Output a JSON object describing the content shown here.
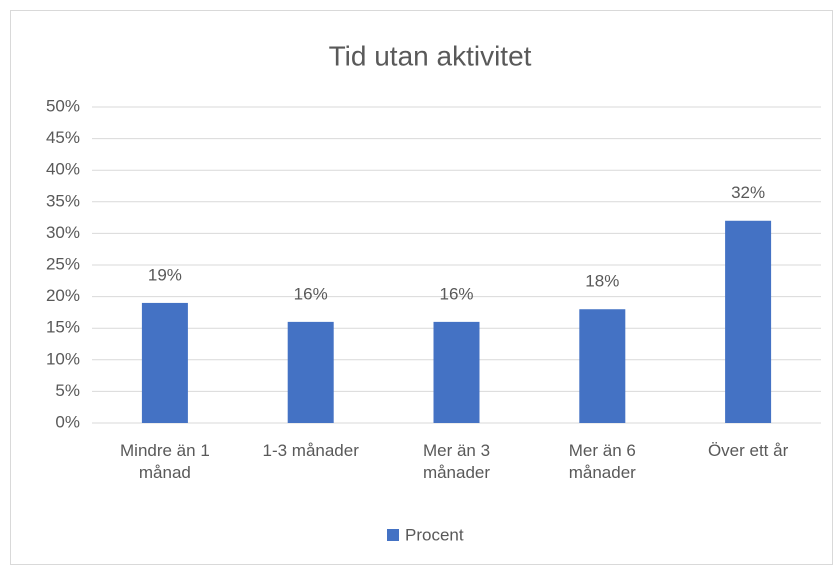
{
  "chart_data": {
    "type": "bar",
    "title": "Tid utan aktivitet",
    "categories": [
      "Mindre än 1 månad",
      "1-3 månader",
      "Mer än 3 månader",
      "Mer än 6 månader",
      "Över ett år"
    ],
    "series": [
      {
        "name": "Procent",
        "color": "#4472c4",
        "values": [
          19,
          16,
          16,
          18,
          32
        ],
        "value_labels": [
          "19%",
          "16%",
          "16%",
          "18%",
          "32%"
        ]
      }
    ],
    "ylim": [
      0,
      50
    ],
    "yticks": [
      {
        "value": 0,
        "label": "0%"
      },
      {
        "value": 5,
        "label": "5%"
      },
      {
        "value": 10,
        "label": "10%"
      },
      {
        "value": 15,
        "label": "15%"
      },
      {
        "value": 20,
        "label": "20%"
      },
      {
        "value": 25,
        "label": "25%"
      },
      {
        "value": 30,
        "label": "30%"
      },
      {
        "value": 35,
        "label": "35%"
      },
      {
        "value": 40,
        "label": "40%"
      },
      {
        "value": 45,
        "label": "45%"
      },
      {
        "value": 50,
        "label": "50%"
      }
    ],
    "grid": true,
    "legend": "bottom"
  }
}
